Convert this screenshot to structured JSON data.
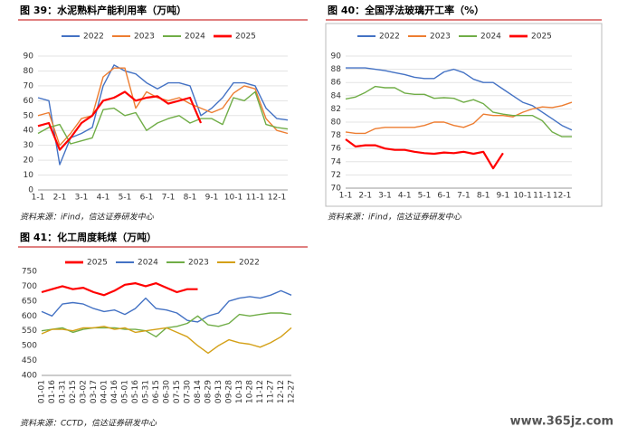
{
  "chart_data": [
    {
      "type": "line",
      "title": "图 39：水泥熟料产能利用率（万吨）",
      "source": "资料来源：iFind，信达证券研发中心",
      "categories": [
        "1-1",
        null,
        "2-1",
        null,
        "3-1",
        null,
        "4-1",
        null,
        "5-1",
        null,
        "6-1",
        null,
        "7-1",
        null,
        "8-1",
        null,
        "9-1",
        null,
        "10-1",
        null,
        "11-1",
        null,
        "12-1",
        null
      ],
      "ylim": [
        0,
        90
      ],
      "yticks": [
        0,
        10,
        20,
        30,
        40,
        50,
        60,
        70,
        80,
        90
      ],
      "grid": true,
      "legend": "top",
      "series": [
        {
          "name": "2022",
          "color": "#4472c4",
          "values": [
            62,
            60,
            17,
            35,
            38,
            42,
            70,
            84,
            80,
            78,
            72,
            68,
            72,
            72,
            70,
            50,
            55,
            62,
            72,
            72,
            70,
            55,
            48,
            47
          ]
        },
        {
          "name": "2023",
          "color": "#ed7d31",
          "values": [
            50,
            52,
            30,
            38,
            48,
            50,
            76,
            82,
            82,
            55,
            66,
            62,
            60,
            62,
            58,
            55,
            52,
            55,
            65,
            70,
            68,
            48,
            40,
            38
          ]
        },
        {
          "name": "2024",
          "color": "#70ad47",
          "values": [
            38,
            42,
            44,
            31,
            33,
            35,
            54,
            55,
            50,
            52,
            40,
            45,
            48,
            50,
            45,
            48,
            48,
            44,
            62,
            60,
            66,
            44,
            42,
            41
          ]
        },
        {
          "name": "2025",
          "color": "#ff0000",
          "values": [
            43,
            45,
            27,
            35,
            45,
            50,
            60,
            62,
            66,
            60,
            62,
            63,
            58,
            60,
            62,
            45,
            null,
            null,
            null,
            null,
            null,
            null,
            null,
            null
          ]
        }
      ]
    },
    {
      "type": "line",
      "title": "图 40：全国浮法玻璃开工率（%）",
      "source": "资料来源：iFind，信达证券研发中心",
      "categories": [
        "1-1",
        null,
        "2-1",
        null,
        "3-1",
        null,
        "4-1",
        null,
        "5-1",
        null,
        "6-1",
        null,
        "7-1",
        null,
        "8-1",
        null,
        "9-1",
        null,
        "10-1",
        null,
        "11-1",
        null,
        "12-1",
        null
      ],
      "ylim": [
        70,
        90
      ],
      "yticks": [
        70,
        72,
        74,
        76,
        78,
        80,
        82,
        84,
        86,
        88,
        90
      ],
      "grid": true,
      "legend": "top",
      "series": [
        {
          "name": "2022",
          "color": "#4472c4",
          "values": [
            88.2,
            88.2,
            88.2,
            88,
            87.8,
            87.5,
            87.2,
            86.8,
            86.6,
            86.6,
            87.6,
            88,
            87.5,
            86.5,
            86,
            86,
            85,
            84,
            83,
            82.5,
            81.5,
            80.5,
            79.5,
            78.8
          ]
        },
        {
          "name": "2023",
          "color": "#ed7d31",
          "values": [
            78.5,
            78.3,
            78.3,
            79,
            79.2,
            79.2,
            79.2,
            79.2,
            79.5,
            80,
            80,
            79.5,
            79.2,
            79.8,
            81.2,
            81,
            81,
            80.8,
            81.5,
            82,
            82.3,
            82.2,
            82.5,
            83
          ]
        },
        {
          "name": "2024",
          "color": "#70ad47",
          "values": [
            83.5,
            83.8,
            84.5,
            85.4,
            85.2,
            85.2,
            84.4,
            84.2,
            84.2,
            83.6,
            83.7,
            83.6,
            83,
            83.4,
            82.8,
            81.5,
            81.2,
            81,
            81,
            81,
            80.2,
            78.5,
            77.8,
            77.8
          ]
        },
        {
          "name": "2025",
          "color": "#ff0000",
          "values": [
            77.4,
            76.3,
            76.5,
            76.5,
            76,
            75.8,
            75.8,
            75.5,
            75.3,
            75.2,
            75.4,
            75.3,
            75.5,
            75.2,
            75.5,
            73,
            75.3,
            null,
            null,
            null,
            null,
            null,
            null,
            null
          ]
        }
      ]
    },
    {
      "type": "line",
      "title": "图 41：化工周度耗煤（万吨）",
      "source": "资料来源：CCTD，信达证券研发中心",
      "categories": [
        "01-01",
        "01-16",
        "01-31",
        "02-15",
        "03-02",
        "03-17",
        "04-01",
        "04-16",
        "05-01",
        "05-16",
        "05-31",
        "06-15",
        "06-30",
        "07-15",
        "07-30",
        "08-14",
        "08-29",
        "09-13",
        "09-28",
        "10-13",
        "10-28",
        "11-12",
        "11-27",
        "12-12",
        "12-27"
      ],
      "ylim": [
        400,
        750
      ],
      "yticks": [
        400,
        450,
        500,
        550,
        600,
        650,
        700,
        750
      ],
      "grid": false,
      "legend": "top",
      "rotate_labels": true,
      "series": [
        {
          "name": "2025",
          "color": "#ff0000",
          "values": [
            680,
            690,
            700,
            690,
            695,
            680,
            670,
            685,
            705,
            710,
            700,
            710,
            695,
            680,
            690,
            690,
            null,
            null,
            null,
            null,
            null,
            null,
            null,
            null,
            null
          ]
        },
        {
          "name": "2024",
          "color": "#4472c4",
          "values": [
            615,
            600,
            640,
            645,
            640,
            625,
            615,
            620,
            605,
            625,
            660,
            625,
            620,
            610,
            585,
            580,
            600,
            610,
            650,
            660,
            665,
            660,
            670,
            685,
            670
          ]
        },
        {
          "name": "2023",
          "color": "#70ad47",
          "values": [
            550,
            555,
            560,
            545,
            555,
            560,
            560,
            560,
            555,
            555,
            550,
            530,
            560,
            565,
            575,
            600,
            570,
            565,
            575,
            605,
            600,
            605,
            610,
            610,
            605
          ]
        },
        {
          "name": "2022",
          "color": "#d4a017",
          "values": [
            540,
            555,
            555,
            550,
            560,
            560,
            565,
            555,
            560,
            545,
            550,
            555,
            560,
            545,
            530,
            500,
            475,
            500,
            520,
            510,
            505,
            495,
            510,
            530,
            560
          ]
        }
      ]
    }
  ],
  "watermark": "www.365jz.com"
}
